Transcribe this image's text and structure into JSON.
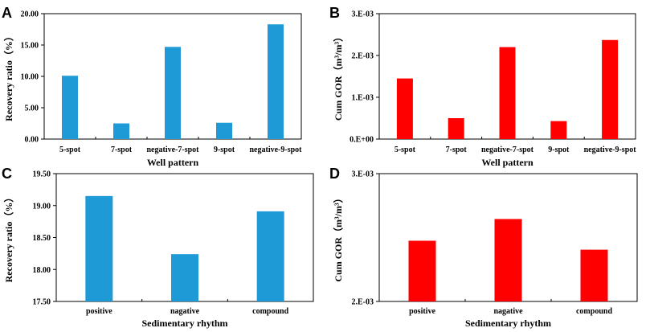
{
  "chart_data": [
    {
      "panel": "A",
      "type": "bar",
      "color": "#1E9BD7",
      "categories": [
        "5-spot",
        "7-spot",
        "negative-7-spot",
        "9-spot",
        "negative-9-spot"
      ],
      "values": [
        10.1,
        2.5,
        14.7,
        2.6,
        18.3
      ],
      "ylim": [
        0,
        20
      ],
      "yticks": [
        0,
        5,
        10,
        15,
        20
      ],
      "ytick_labels": [
        "0.00",
        "5.00",
        "10.00",
        "15.00",
        "20.00"
      ],
      "xlabel": "Well pattern",
      "ylabel": "Recovery ratio（%）"
    },
    {
      "panel": "B",
      "type": "bar",
      "color": "#FF0000",
      "categories": [
        "5-spot",
        "7-spot",
        "negative-7-spot",
        "9-spot",
        "negative-9-spot"
      ],
      "values": [
        0.00145,
        0.0005,
        0.0022,
        0.00043,
        0.00237
      ],
      "ylim": [
        0,
        0.003
      ],
      "yticks": [
        0,
        0.001,
        0.002,
        0.003
      ],
      "ytick_labels": [
        "0.E+00",
        "1.E-03",
        "2.E-03",
        "3.E-03"
      ],
      "xlabel": "Well pattern",
      "ylabel": "Cum GOR（m³/m³）"
    },
    {
      "panel": "C",
      "type": "bar",
      "color": "#1E9BD7",
      "categories": [
        "positive",
        "nagative",
        "compound"
      ],
      "values": [
        19.15,
        18.24,
        18.91
      ],
      "ylim": [
        17.5,
        19.5
      ],
      "yticks": [
        17.5,
        18.0,
        18.5,
        19.0,
        19.5
      ],
      "ytick_labels": [
        "17.50",
        "18.00",
        "18.50",
        "19.00",
        "19.50"
      ],
      "xlabel": "Sedimentary rhythm",
      "ylabel": "Recovery ratio（%）"
    },
    {
      "panel": "D",
      "type": "bar",
      "color": "#FF0000",
      "categories": [
        "positive",
        "nagative",
        "compound"
      ],
      "values": [
        0.002475,
        0.002645,
        0.002405
      ],
      "ylim": [
        0.002,
        0.003
      ],
      "yticks": [
        0.002,
        0.003
      ],
      "ytick_labels": [
        "2.E-03",
        "3.E-03"
      ],
      "xlabel": "Sedimentary rhythm",
      "ylabel": "Cum GOR（m³/m³）"
    }
  ]
}
